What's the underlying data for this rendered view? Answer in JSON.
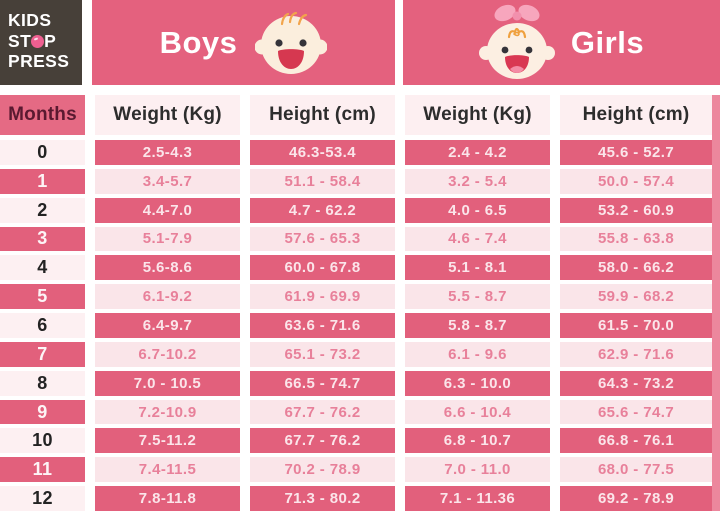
{
  "logo": {
    "line1": "KIDS",
    "line2_pre": "ST",
    "line2_post": "P",
    "line3": "PRESS"
  },
  "banner": {
    "boys_label": "Boys",
    "girls_label": "Girls"
  },
  "chart_data": {
    "type": "table",
    "title": "Baby weight and height chart by month, boys and girls, 0-12 months",
    "groups": [
      "Boys",
      "Girls"
    ],
    "columns": [
      "Months",
      "Weight (Kg)",
      "Height (cm)",
      "Weight (Kg)",
      "Height (cm)"
    ],
    "rows": [
      [
        "0",
        "2.5-4.3",
        "46.3-53.4",
        "2.4 - 4.2",
        "45.6 - 52.7"
      ],
      [
        "1",
        "3.4-5.7",
        "51.1 - 58.4",
        "3.2 - 5.4",
        "50.0 - 57.4"
      ],
      [
        "2",
        "4.4-7.0",
        "4.7 - 62.2",
        "4.0 - 6.5",
        "53.2 - 60.9"
      ],
      [
        "3",
        "5.1-7.9",
        "57.6 - 65.3",
        "4.6 - 7.4",
        "55.8 - 63.8"
      ],
      [
        "4",
        "5.6-8.6",
        "60.0 - 67.8",
        "5.1 - 8.1",
        "58.0 - 66.2"
      ],
      [
        "5",
        "6.1-9.2",
        "61.9 - 69.9",
        "5.5 - 8.7",
        "59.9 - 68.2"
      ],
      [
        "6",
        "6.4-9.7",
        "63.6 - 71.6",
        "5.8 - 8.7",
        "61.5 - 70.0"
      ],
      [
        "7",
        "6.7-10.2",
        "65.1 - 73.2",
        "6.1 - 9.6",
        "62.9 - 71.6"
      ],
      [
        "8",
        "7.0 - 10.5",
        "66.5 - 74.7",
        "6.3 - 10.0",
        "64.3 - 73.2"
      ],
      [
        "9",
        "7.2-10.9",
        "67.7 - 76.2",
        "6.6 - 10.4",
        "65.6 - 74.7"
      ],
      [
        "10",
        "7.5-11.2",
        "67.7 - 76.2",
        "6.8 - 10.7",
        "66.8 - 76.1"
      ],
      [
        "11",
        "7.4-11.5",
        "70.2 - 78.9",
        "7.0 - 11.0",
        "68.0 - 77.5"
      ],
      [
        "12",
        "7.8-11.8",
        "71.3 - 80.2",
        "7.1 - 11.36",
        "69.2 - 78.9"
      ]
    ]
  },
  "colors": {
    "band_pink": "#e4617e",
    "row_dark_pink": "#e2607c",
    "row_light_pink": "#fae5e9",
    "light_row_text_pink": "#e8809a",
    "months_header_text": "#5a1930",
    "logo_background": "#474039",
    "logo_accent_pink": "#ee5f90",
    "baby_face_cream": "#fbeedd",
    "mouth_red": "#d63850",
    "bow_pink": "#f7a6bd",
    "hair_orange": "#f2a44b"
  }
}
